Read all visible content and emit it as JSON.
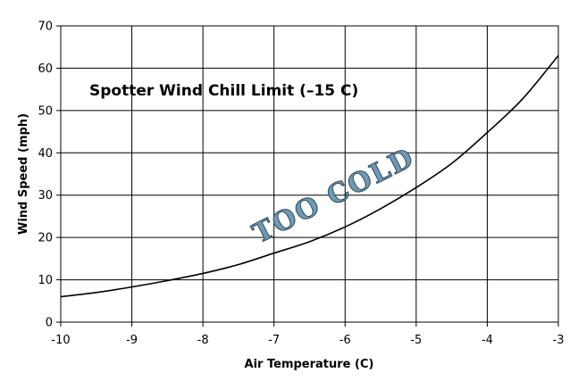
{
  "chart_data": {
    "type": "line",
    "title": "Spotter Wind Chill Limit (–15 C)",
    "xlabel": "Air Temperature (C)",
    "ylabel": "Wind Speed (mph)",
    "xlim": [
      -10,
      -3
    ],
    "ylim": [
      0,
      70
    ],
    "xticks": [
      -10,
      -9,
      -8,
      -7,
      -6,
      -5,
      -4,
      -3
    ],
    "yticks": [
      0,
      10,
      20,
      30,
      40,
      50,
      60,
      70
    ],
    "grid": true,
    "annotation": "TOO COLD",
    "series": [
      {
        "x": [
          -10,
          -9.5,
          -9,
          -8.5,
          -8,
          -7.5,
          -7,
          -6.5,
          -6,
          -5.5,
          -5,
          -4.5,
          -4,
          -3.5,
          -3
        ],
        "y": [
          6,
          7,
          8.3,
          9.8,
          11.5,
          13.6,
          16.3,
          19,
          22.5,
          26.8,
          31.8,
          37.5,
          44.8,
          52.8,
          63
        ]
      }
    ],
    "colors": {
      "line": "#000000",
      "grid": "#000000",
      "annotation_fill": "#6f9ab6"
    }
  }
}
